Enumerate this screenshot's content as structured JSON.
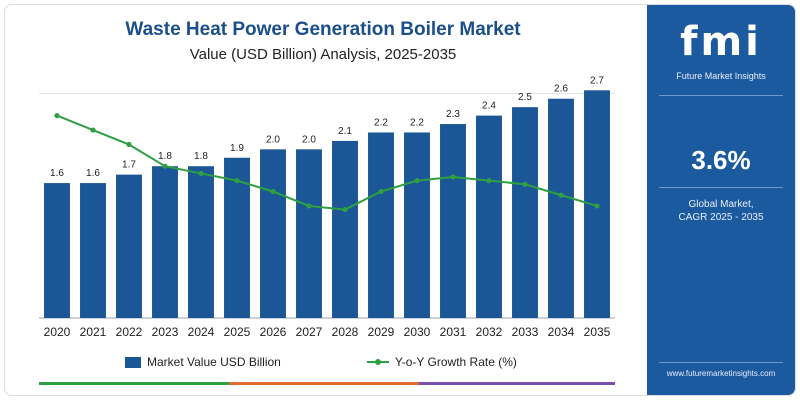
{
  "header": {
    "title": "Waste Heat Power Generation Boiler Market",
    "subtitle": "Value (USD Billion) Analysis, 2025-2035"
  },
  "chart_data": {
    "type": "bar",
    "categories": [
      "2020",
      "2021",
      "2022",
      "2023",
      "2024",
      "2025",
      "2026",
      "2027",
      "2028",
      "2029",
      "2030",
      "2031",
      "2032",
      "2033",
      "2034",
      "2035"
    ],
    "series": [
      {
        "name": "Market Value USD Billion",
        "type": "bar",
        "values": [
          1.6,
          1.6,
          1.7,
          1.8,
          1.8,
          1.9,
          2.0,
          2.0,
          2.1,
          2.2,
          2.2,
          2.3,
          2.4,
          2.5,
          2.6,
          2.7
        ],
        "value_labels": [
          "1.6",
          "1.6",
          "1.7",
          "1.8",
          "1.8",
          "1.9",
          "2.0",
          "2.0",
          "2.1",
          "2.2",
          "2.2",
          "2.3",
          "2.4",
          "2.5",
          "2.6",
          "2.7"
        ],
        "color": "#1b5696"
      },
      {
        "name": "Y-o-Y Growth Rate (%)",
        "type": "line",
        "values": [
          5.6,
          5.2,
          4.8,
          4.2,
          4.0,
          3.8,
          3.5,
          3.1,
          3.0,
          3.5,
          3.8,
          3.9,
          3.8,
          3.7,
          3.4,
          3.1
        ],
        "color": "#2ea043"
      }
    ],
    "ylim": [
      0,
      3.0
    ],
    "y2lim": [
      0,
      7.0
    ],
    "legend_position": "bottom",
    "grid": false
  },
  "legend": {
    "bar_label": "Market Value USD Billion",
    "line_label": "Y-o-Y Growth Rate (%)"
  },
  "sidebar": {
    "logo_text": "fmi",
    "logo_subtitle": "Future Market Insights",
    "cagr_value": "3.6%",
    "cagr_label_line1": "Global Market,",
    "cagr_label_line2": "CAGR 2025 - 2035",
    "website": "www.futuremarketinsights.com"
  },
  "colors": {
    "sidebar_bg": "#1c5aa0",
    "title": "#1b4f8a",
    "bar": "#1b5696",
    "line": "#2ea043"
  }
}
